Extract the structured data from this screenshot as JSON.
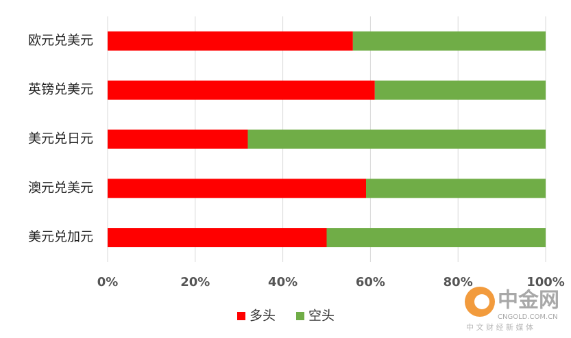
{
  "chart_data": {
    "type": "stacked-barh",
    "categories": [
      "欧元兑美元",
      "英镑兑美元",
      "美元兑日元",
      "澳元兑美元",
      "美元兑加元"
    ],
    "series": [
      {
        "name": "多头",
        "color": "#ff0000",
        "values": [
          56,
          61,
          32,
          59,
          50
        ]
      },
      {
        "name": "空头",
        "color": "#70ad47",
        "values": [
          44,
          39,
          68,
          41,
          50
        ]
      }
    ],
    "xlim": [
      0,
      100
    ],
    "xticks": [
      {
        "value": 0,
        "label": "0%"
      },
      {
        "value": 20,
        "label": "20%"
      },
      {
        "value": 40,
        "label": "40%"
      },
      {
        "value": 60,
        "label": "60%"
      },
      {
        "value": 80,
        "label": "80%"
      },
      {
        "value": 100,
        "label": "100%"
      }
    ],
    "grid": true,
    "legend": "bottom"
  },
  "watermark": {
    "brand": "中金网",
    "site": "CNGOLD.COM.CN",
    "slogan": "中 文 财 经 新 媒 体"
  }
}
